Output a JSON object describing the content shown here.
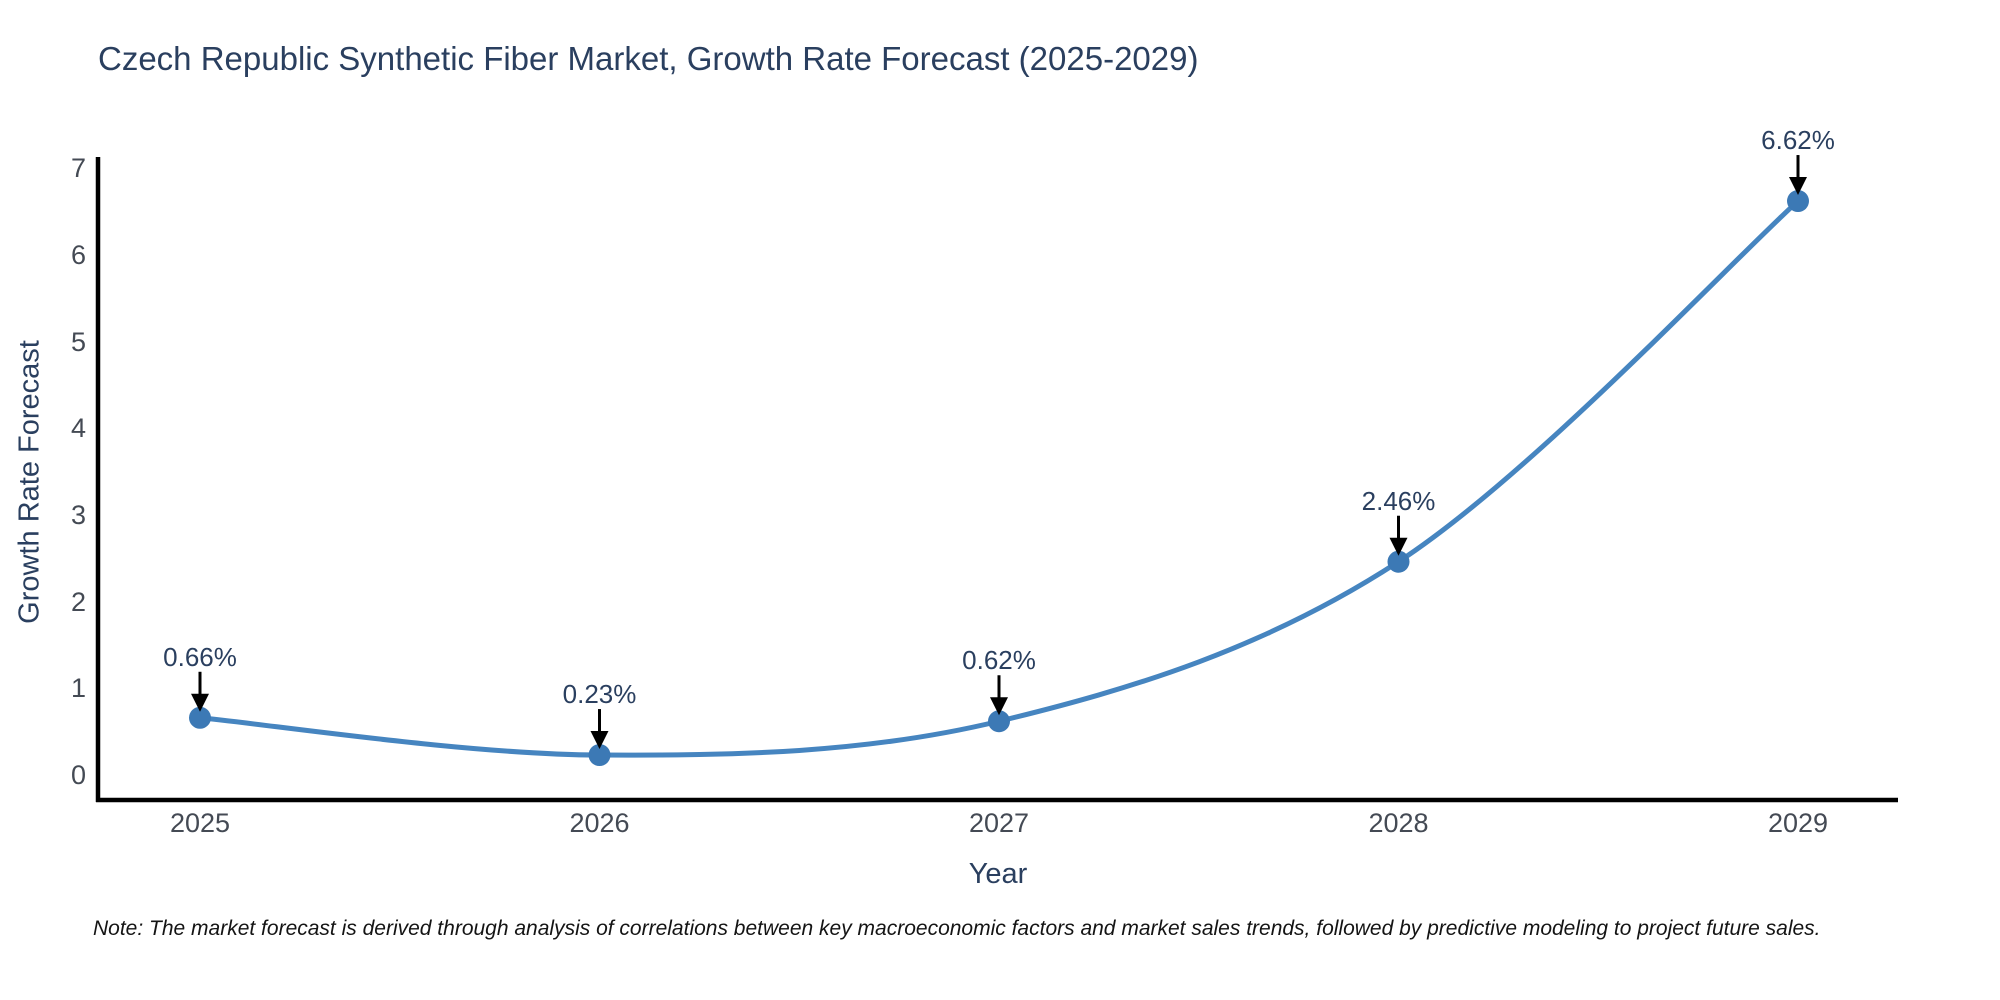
{
  "chart_data": {
    "type": "line",
    "line_shape": "spline",
    "title": "Czech Republic Synthetic Fiber Market, Growth Rate Forecast (2025-2029)",
    "xlabel": "Year",
    "ylabel": "Growth Rate Forecast",
    "categories": [
      "2025",
      "2026",
      "2027",
      "2028",
      "2029"
    ],
    "values": [
      0.66,
      0.23,
      0.62,
      2.46,
      6.62
    ],
    "point_labels": [
      "0.66%",
      "0.23%",
      "0.62%",
      "2.46%",
      "6.62%"
    ],
    "yticks": [
      0,
      1,
      2,
      3,
      4,
      5,
      6,
      7
    ],
    "ylim": [
      0,
      7
    ],
    "grid": false,
    "legend_position": "none",
    "note": "Note: The market forecast is derived through analysis of correlations between key macroeconomic factors and market sales trends, followed by predictive modeling to project future sales.",
    "colors": {
      "line": "#4685c0",
      "marker": "#3c79b5",
      "axis": "#000000",
      "arrow": "#000000",
      "title_text": "#2a3f5f",
      "tick_text": "#444a54",
      "annotation_text": "#2a3f5f",
      "note_text": "#141414",
      "background": "#ffffff"
    }
  }
}
